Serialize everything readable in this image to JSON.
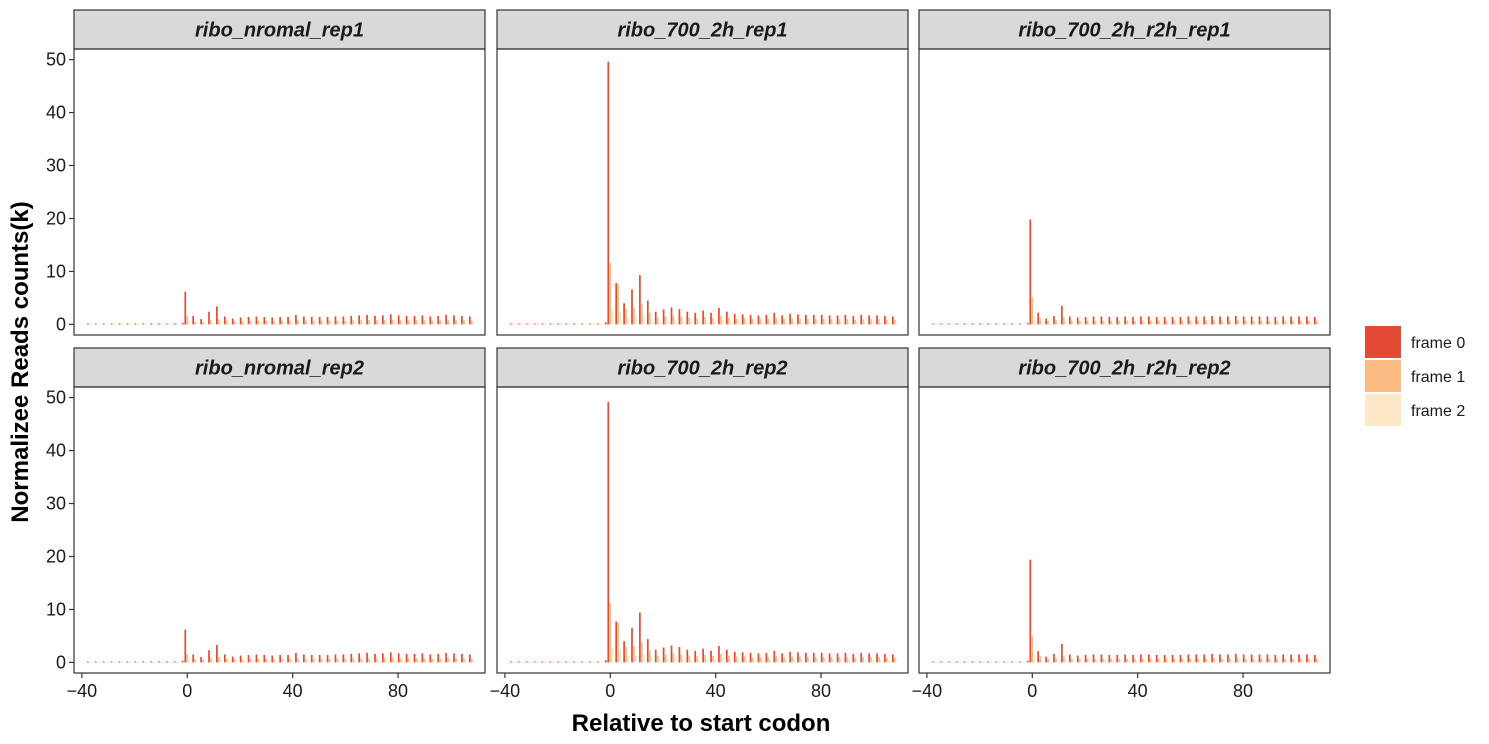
{
  "chart_data": {
    "type": "bar",
    "layout": "facet-grid 2 rows x 3 columns, shared axes",
    "xlabel": "Relative to start codon",
    "ylabel": "Normalizee Reads counts(k)",
    "xlim": [
      -43,
      113
    ],
    "ylim": [
      -2,
      52
    ],
    "x_ticks": [
      -40,
      0,
      40,
      80
    ],
    "x_tick_labels": [
      "−40",
      "0",
      "40",
      "80"
    ],
    "y_ticks": [
      0,
      10,
      20,
      30,
      40,
      50
    ],
    "y_tick_labels": [
      "0",
      "10",
      "20",
      "30",
      "40",
      "50"
    ],
    "grid": false,
    "legend": {
      "position": "right",
      "entries": [
        {
          "label": "frame 0",
          "color": "#E34A33"
        },
        {
          "label": "frame 1",
          "color": "#FDBB84"
        },
        {
          "label": "frame 2",
          "color": "#FEE8C8"
        }
      ]
    },
    "codon_positions": [
      -37,
      -34,
      -31,
      -28,
      -25,
      -22,
      -19,
      -16,
      -13,
      -10,
      -7,
      -4,
      -1,
      0,
      3,
      6,
      9,
      12,
      15,
      18,
      21,
      24,
      27,
      30,
      33,
      36,
      39,
      42,
      45,
      48,
      51,
      54,
      57,
      60,
      63,
      66,
      69,
      72,
      75,
      78,
      81,
      84,
      87,
      90,
      93,
      96,
      99,
      102,
      105,
      108
    ],
    "facets": [
      {
        "title": "ribo_nromal_rep1",
        "frame0": [
          0.2,
          0.2,
          0.2,
          0.2,
          0.2,
          0.2,
          0.2,
          0.2,
          0.2,
          0.2,
          0.2,
          0.2,
          0.3,
          6.2,
          1.6,
          1.0,
          2.4,
          3.4,
          1.5,
          1.1,
          1.3,
          1.4,
          1.5,
          1.4,
          1.3,
          1.4,
          1.4,
          1.8,
          1.5,
          1.4,
          1.4,
          1.4,
          1.5,
          1.5,
          1.6,
          1.7,
          1.8,
          1.6,
          1.7,
          1.9,
          1.7,
          1.6,
          1.6,
          1.7,
          1.5,
          1.6,
          1.8,
          1.7,
          1.6,
          1.5
        ],
        "frame1": [
          0.1,
          0.1,
          0.1,
          0.1,
          0.1,
          0.1,
          0.1,
          0.1,
          0.1,
          0.1,
          0.1,
          0.1,
          0.2,
          1.6,
          0.6,
          0.5,
          0.8,
          1.0,
          0.7,
          0.6,
          0.6,
          0.7,
          0.7,
          0.7,
          0.6,
          0.7,
          0.7,
          0.8,
          0.7,
          0.7,
          0.7,
          0.7,
          0.7,
          0.7,
          0.8,
          0.8,
          0.8,
          0.8,
          0.8,
          0.9,
          0.8,
          0.8,
          0.8,
          0.8,
          0.7,
          0.8,
          0.8,
          0.8,
          0.8,
          0.7
        ],
        "frame2": [
          0.1,
          0.1,
          0.1,
          0.1,
          0.1,
          0.1,
          0.1,
          0.1,
          0.1,
          0.1,
          0.1,
          0.1,
          0.1,
          0.6,
          0.3,
          0.3,
          0.4,
          0.5,
          0.4,
          0.3,
          0.3,
          0.4,
          0.4,
          0.4,
          0.3,
          0.4,
          0.4,
          0.4,
          0.4,
          0.4,
          0.4,
          0.4,
          0.4,
          0.4,
          0.4,
          0.4,
          0.4,
          0.4,
          0.4,
          0.5,
          0.4,
          0.4,
          0.4,
          0.4,
          0.4,
          0.4,
          0.4,
          0.4,
          0.4,
          0.4
        ]
      },
      {
        "title": "ribo_700_2h_rep1",
        "frame0": [
          0.2,
          0.2,
          0.2,
          0.2,
          0.2,
          0.2,
          0.2,
          0.2,
          0.2,
          0.2,
          0.2,
          0.2,
          0.4,
          49.6,
          7.8,
          4.0,
          6.6,
          9.3,
          4.5,
          2.4,
          2.8,
          3.2,
          2.9,
          2.4,
          2.2,
          2.6,
          2.2,
          3.1,
          2.4,
          2.0,
          1.9,
          1.8,
          1.7,
          1.8,
          2.2,
          1.7,
          2.0,
          1.9,
          1.8,
          1.8,
          1.8,
          1.7,
          1.7,
          1.8,
          1.6,
          1.8,
          1.7,
          1.7,
          1.6,
          1.5
        ],
        "frame1": [
          0.1,
          0.1,
          0.1,
          0.1,
          0.1,
          0.1,
          0.1,
          0.1,
          0.1,
          0.1,
          0.1,
          0.1,
          0.3,
          11.6,
          7.6,
          2.9,
          3.1,
          3.8,
          2.2,
          1.3,
          1.5,
          1.7,
          1.5,
          1.3,
          1.2,
          1.4,
          1.2,
          1.6,
          1.3,
          1.1,
          1.1,
          1.0,
          1.0,
          1.0,
          1.2,
          1.0,
          1.1,
          1.1,
          1.0,
          1.0,
          1.0,
          1.0,
          1.0,
          1.0,
          0.9,
          1.0,
          1.0,
          1.0,
          0.9,
          0.9
        ],
        "frame2": [
          0.1,
          0.1,
          0.1,
          0.1,
          0.1,
          0.1,
          0.1,
          0.1,
          0.1,
          0.1,
          0.1,
          0.1,
          0.1,
          3.0,
          2.4,
          1.2,
          1.3,
          1.5,
          0.9,
          0.6,
          0.7,
          0.8,
          0.7,
          0.6,
          0.6,
          0.7,
          0.6,
          0.8,
          0.6,
          0.6,
          0.5,
          0.5,
          0.5,
          0.5,
          0.6,
          0.5,
          0.5,
          0.5,
          0.5,
          0.5,
          0.5,
          0.5,
          0.5,
          0.5,
          0.5,
          0.5,
          0.5,
          0.5,
          0.5,
          0.4
        ]
      },
      {
        "title": "ribo_700_2h_r2h_rep1",
        "frame0": [
          0.2,
          0.2,
          0.2,
          0.2,
          0.2,
          0.2,
          0.2,
          0.2,
          0.2,
          0.2,
          0.2,
          0.2,
          0.3,
          19.8,
          2.2,
          1.1,
          1.6,
          3.5,
          1.5,
          1.3,
          1.4,
          1.5,
          1.5,
          1.4,
          1.4,
          1.5,
          1.4,
          1.5,
          1.5,
          1.4,
          1.4,
          1.4,
          1.4,
          1.5,
          1.5,
          1.5,
          1.6,
          1.5,
          1.5,
          1.6,
          1.5,
          1.5,
          1.5,
          1.5,
          1.4,
          1.5,
          1.5,
          1.5,
          1.5,
          1.4
        ],
        "frame1": [
          0.1,
          0.1,
          0.1,
          0.1,
          0.1,
          0.1,
          0.1,
          0.1,
          0.1,
          0.1,
          0.1,
          0.1,
          0.2,
          5.1,
          1.2,
          0.6,
          0.8,
          1.2,
          0.7,
          0.7,
          0.7,
          0.7,
          0.7,
          0.7,
          0.7,
          0.7,
          0.7,
          0.7,
          0.7,
          0.7,
          0.7,
          0.7,
          0.7,
          0.7,
          0.7,
          0.7,
          0.8,
          0.7,
          0.7,
          0.8,
          0.7,
          0.7,
          0.7,
          0.7,
          0.7,
          0.7,
          0.7,
          0.7,
          0.7,
          0.7
        ],
        "frame2": [
          0.1,
          0.1,
          0.1,
          0.1,
          0.1,
          0.1,
          0.1,
          0.1,
          0.1,
          0.1,
          0.1,
          0.1,
          0.1,
          1.4,
          0.5,
          0.3,
          0.4,
          0.5,
          0.4,
          0.3,
          0.3,
          0.4,
          0.4,
          0.3,
          0.3,
          0.4,
          0.3,
          0.4,
          0.4,
          0.3,
          0.3,
          0.3,
          0.3,
          0.4,
          0.4,
          0.4,
          0.4,
          0.4,
          0.4,
          0.4,
          0.4,
          0.4,
          0.4,
          0.4,
          0.3,
          0.4,
          0.4,
          0.4,
          0.4,
          0.3
        ]
      },
      {
        "title": "ribo_nromal_rep2",
        "frame0": [
          0.2,
          0.2,
          0.2,
          0.2,
          0.2,
          0.2,
          0.2,
          0.2,
          0.2,
          0.2,
          0.2,
          0.2,
          0.3,
          6.2,
          1.5,
          1.0,
          2.3,
          3.3,
          1.5,
          1.1,
          1.3,
          1.4,
          1.5,
          1.4,
          1.3,
          1.4,
          1.4,
          1.8,
          1.5,
          1.4,
          1.4,
          1.4,
          1.5,
          1.5,
          1.6,
          1.7,
          1.8,
          1.6,
          1.7,
          1.9,
          1.7,
          1.6,
          1.6,
          1.7,
          1.5,
          1.6,
          1.8,
          1.7,
          1.6,
          1.5
        ],
        "frame1": [
          0.1,
          0.1,
          0.1,
          0.1,
          0.1,
          0.1,
          0.1,
          0.1,
          0.1,
          0.1,
          0.1,
          0.1,
          0.2,
          1.6,
          0.6,
          0.5,
          0.8,
          1.0,
          0.7,
          0.6,
          0.6,
          0.7,
          0.7,
          0.7,
          0.6,
          0.7,
          0.7,
          0.8,
          0.7,
          0.7,
          0.7,
          0.7,
          0.7,
          0.7,
          0.8,
          0.8,
          0.8,
          0.8,
          0.8,
          0.9,
          0.8,
          0.8,
          0.8,
          0.8,
          0.7,
          0.8,
          0.8,
          0.8,
          0.8,
          0.7
        ],
        "frame2": [
          0.1,
          0.1,
          0.1,
          0.1,
          0.1,
          0.1,
          0.1,
          0.1,
          0.1,
          0.1,
          0.1,
          0.1,
          0.1,
          0.6,
          0.3,
          0.3,
          0.4,
          0.5,
          0.4,
          0.3,
          0.3,
          0.4,
          0.4,
          0.4,
          0.3,
          0.4,
          0.4,
          0.4,
          0.4,
          0.4,
          0.4,
          0.4,
          0.4,
          0.4,
          0.4,
          0.4,
          0.4,
          0.4,
          0.4,
          0.5,
          0.4,
          0.4,
          0.4,
          0.4,
          0.4,
          0.4,
          0.4,
          0.4,
          0.4,
          0.4
        ]
      },
      {
        "title": "ribo_700_2h_rep2",
        "frame0": [
          0.2,
          0.2,
          0.2,
          0.2,
          0.2,
          0.2,
          0.2,
          0.2,
          0.2,
          0.2,
          0.2,
          0.2,
          0.4,
          49.2,
          7.7,
          4.0,
          6.5,
          9.4,
          4.4,
          2.4,
          2.8,
          3.2,
          2.9,
          2.4,
          2.2,
          2.6,
          2.2,
          3.1,
          2.4,
          2.0,
          1.9,
          1.8,
          1.7,
          1.8,
          2.2,
          1.7,
          2.0,
          1.9,
          1.8,
          1.8,
          1.8,
          1.7,
          1.7,
          1.8,
          1.6,
          1.8,
          1.7,
          1.7,
          1.6,
          1.5
        ],
        "frame1": [
          0.1,
          0.1,
          0.1,
          0.1,
          0.1,
          0.1,
          0.1,
          0.1,
          0.1,
          0.1,
          0.1,
          0.1,
          0.3,
          11.2,
          7.5,
          2.9,
          3.1,
          3.8,
          2.2,
          1.3,
          1.5,
          1.7,
          1.5,
          1.3,
          1.2,
          1.4,
          1.2,
          1.6,
          1.3,
          1.1,
          1.1,
          1.0,
          1.0,
          1.0,
          1.2,
          1.0,
          1.1,
          1.1,
          1.0,
          1.0,
          1.0,
          1.0,
          1.0,
          1.0,
          0.9,
          1.0,
          1.0,
          1.0,
          0.9,
          0.9
        ],
        "frame2": [
          0.1,
          0.1,
          0.1,
          0.1,
          0.1,
          0.1,
          0.1,
          0.1,
          0.1,
          0.1,
          0.1,
          0.1,
          0.1,
          3.0,
          2.4,
          1.2,
          1.3,
          1.5,
          0.9,
          0.6,
          0.7,
          0.8,
          0.7,
          0.6,
          0.6,
          0.7,
          0.6,
          0.8,
          0.6,
          0.6,
          0.5,
          0.5,
          0.5,
          0.5,
          0.6,
          0.5,
          0.5,
          0.5,
          0.5,
          0.5,
          0.5,
          0.5,
          0.5,
          0.5,
          0.5,
          0.5,
          0.5,
          0.5,
          0.5,
          0.4
        ]
      },
      {
        "title": "ribo_700_2h_r2h_rep2",
        "frame0": [
          0.2,
          0.2,
          0.2,
          0.2,
          0.2,
          0.2,
          0.2,
          0.2,
          0.2,
          0.2,
          0.2,
          0.2,
          0.3,
          19.4,
          2.1,
          1.1,
          1.6,
          3.5,
          1.5,
          1.3,
          1.4,
          1.5,
          1.5,
          1.4,
          1.4,
          1.5,
          1.4,
          1.5,
          1.5,
          1.4,
          1.4,
          1.4,
          1.4,
          1.5,
          1.5,
          1.5,
          1.6,
          1.5,
          1.5,
          1.6,
          1.5,
          1.5,
          1.5,
          1.5,
          1.4,
          1.5,
          1.5,
          1.5,
          1.5,
          1.4
        ],
        "frame1": [
          0.1,
          0.1,
          0.1,
          0.1,
          0.1,
          0.1,
          0.1,
          0.1,
          0.1,
          0.1,
          0.1,
          0.1,
          0.2,
          5.0,
          1.2,
          0.6,
          0.8,
          1.2,
          0.7,
          0.7,
          0.7,
          0.7,
          0.7,
          0.7,
          0.7,
          0.7,
          0.7,
          0.7,
          0.7,
          0.7,
          0.7,
          0.7,
          0.7,
          0.7,
          0.7,
          0.7,
          0.8,
          0.7,
          0.7,
          0.8,
          0.7,
          0.7,
          0.7,
          0.7,
          0.7,
          0.7,
          0.7,
          0.7,
          0.7,
          0.7
        ],
        "frame2": [
          0.1,
          0.1,
          0.1,
          0.1,
          0.1,
          0.1,
          0.1,
          0.1,
          0.1,
          0.1,
          0.1,
          0.1,
          0.1,
          1.4,
          0.5,
          0.3,
          0.4,
          0.5,
          0.4,
          0.3,
          0.3,
          0.4,
          0.4,
          0.3,
          0.3,
          0.4,
          0.3,
          0.4,
          0.4,
          0.3,
          0.3,
          0.3,
          0.3,
          0.4,
          0.4,
          0.4,
          0.4,
          0.4,
          0.4,
          0.4,
          0.4,
          0.4,
          0.4,
          0.4,
          0.3,
          0.4,
          0.4,
          0.4,
          0.4,
          0.3
        ]
      }
    ]
  }
}
